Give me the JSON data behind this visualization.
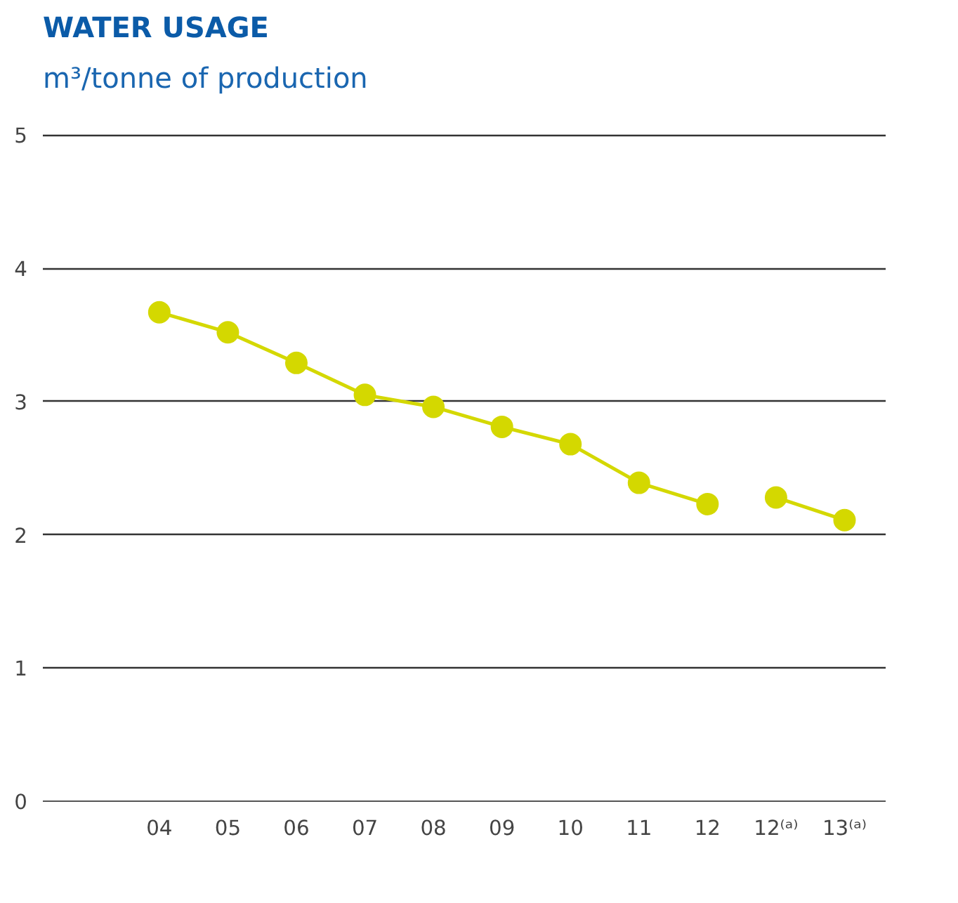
{
  "chart_data": {
    "type": "line",
    "title": "WATER USAGE",
    "subtitle": "m³/tonne of production",
    "categories": [
      "04",
      "05",
      "06",
      "07",
      "08",
      "09",
      "10",
      "11",
      "12",
      "12⁽ᵃ⁾",
      "13⁽ᵃ⁾"
    ],
    "series": [
      {
        "color": "#d4d800",
        "values": [
          3.67,
          3.52,
          3.29,
          3.05,
          2.96,
          2.81,
          2.68,
          2.39,
          2.23,
          null,
          null
        ]
      },
      {
        "color": "#d4d800",
        "values": [
          null,
          null,
          null,
          null,
          null,
          null,
          null,
          null,
          null,
          2.28,
          2.11
        ]
      }
    ],
    "ylim": [
      0,
      5
    ],
    "yticks": [
      0,
      1,
      2,
      3,
      4,
      5
    ],
    "grid": "y",
    "marker": "circle",
    "line_style": "solid"
  }
}
